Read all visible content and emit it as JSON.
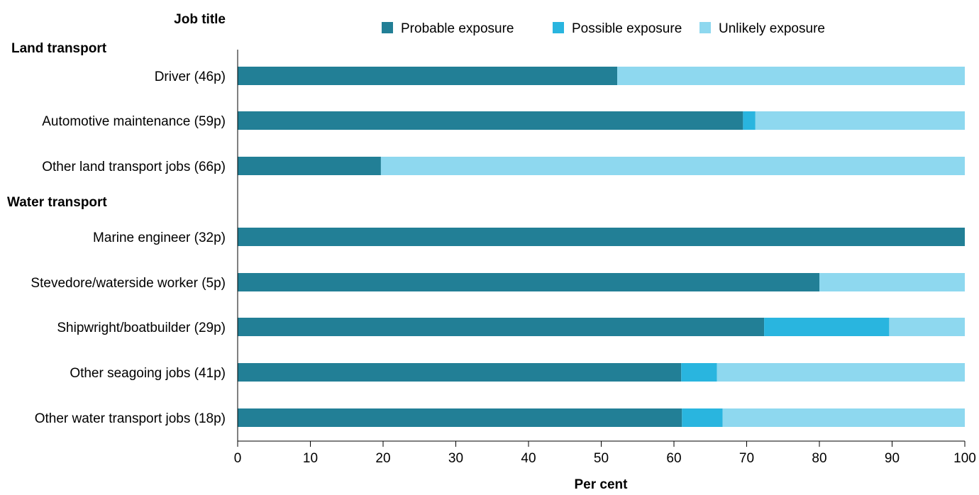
{
  "colors": {
    "probable": "#227f96",
    "possible": "#29b5df",
    "unlikely": "#8ed8ef",
    "axis": "#000000",
    "text": "#000000"
  },
  "chart_data": {
    "type": "bar",
    "orientation": "horizontal",
    "stacked": true,
    "title": "",
    "ylabel": "Job title",
    "xlabel": "Per cent",
    "xlim": [
      0,
      100
    ],
    "xticks": [
      0,
      10,
      20,
      30,
      40,
      50,
      60,
      70,
      80,
      90,
      100
    ],
    "grid": false,
    "legend_position": "top",
    "groups": [
      "Land transport",
      "Water transport"
    ],
    "categories": [
      "Driver (46p)",
      "Automotive maintenance (59p)",
      "Other land transport jobs (66p)",
      "Marine engineer (32p)",
      "Stevedore/waterside worker (5p)",
      "Shipwright/boatbuilder (29p)",
      "Other seagoing jobs (41p)",
      "Other water transport jobs (18p)"
    ],
    "category_group": [
      0,
      0,
      0,
      1,
      1,
      1,
      1,
      1
    ],
    "series": [
      {
        "name": "Probable exposure",
        "color_key": "probable",
        "values": [
          52.2,
          69.5,
          19.7,
          100.0,
          80.0,
          72.4,
          61.0,
          61.1
        ]
      },
      {
        "name": "Possible exposure",
        "color_key": "possible",
        "values": [
          0.0,
          1.7,
          0.0,
          0.0,
          0.0,
          17.2,
          4.9,
          5.6
        ]
      },
      {
        "name": "Unlikely exposure",
        "color_key": "unlikely",
        "values": [
          47.8,
          28.8,
          80.3,
          0.0,
          20.0,
          10.4,
          34.1,
          33.3
        ]
      }
    ]
  }
}
